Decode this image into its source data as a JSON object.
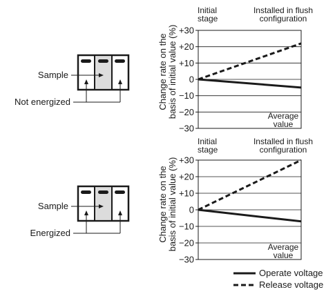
{
  "chart_data": [
    {
      "type": "line",
      "condition_label": "Not energized",
      "sample_label": "Sample",
      "top_left_label": [
        "Initial",
        "stage"
      ],
      "top_right_label": [
        "Installed in flush",
        "configuration"
      ],
      "ylabel": [
        "Change rate on the",
        "basis of initial value (%)"
      ],
      "ylim": [
        -30,
        30
      ],
      "yticks": [
        "+30",
        "+20",
        "+10",
        "0",
        "−10",
        "−20",
        "−30"
      ],
      "grid": true,
      "annotation": [
        "Average",
        "value"
      ],
      "series": [
        {
          "name": "Operate voltage",
          "style": "solid",
          "x": [
            0,
            1
          ],
          "y": [
            0,
            -5
          ]
        },
        {
          "name": "Release voltage",
          "style": "dashed",
          "x": [
            0,
            1
          ],
          "y": [
            0,
            22
          ]
        }
      ]
    },
    {
      "type": "line",
      "condition_label": "Energized",
      "sample_label": "Sample",
      "top_left_label": [
        "Initial",
        "stage"
      ],
      "top_right_label": [
        "Installed in flush",
        "configuration"
      ],
      "ylabel": [
        "Change rate on the",
        "basis of initial value (%)"
      ],
      "ylim": [
        -30,
        30
      ],
      "yticks": [
        "+30",
        "+20",
        "+10",
        "0",
        "−10",
        "−20",
        "−30"
      ],
      "grid": true,
      "annotation": [
        "Average",
        "value"
      ],
      "series": [
        {
          "name": "Operate voltage",
          "style": "solid",
          "x": [
            0,
            1
          ],
          "y": [
            0,
            -7
          ]
        },
        {
          "name": "Release voltage",
          "style": "dashed",
          "x": [
            0,
            1
          ],
          "y": [
            0,
            30
          ]
        }
      ]
    }
  ],
  "legend": {
    "operate": "Operate voltage",
    "release": "Release voltage"
  }
}
